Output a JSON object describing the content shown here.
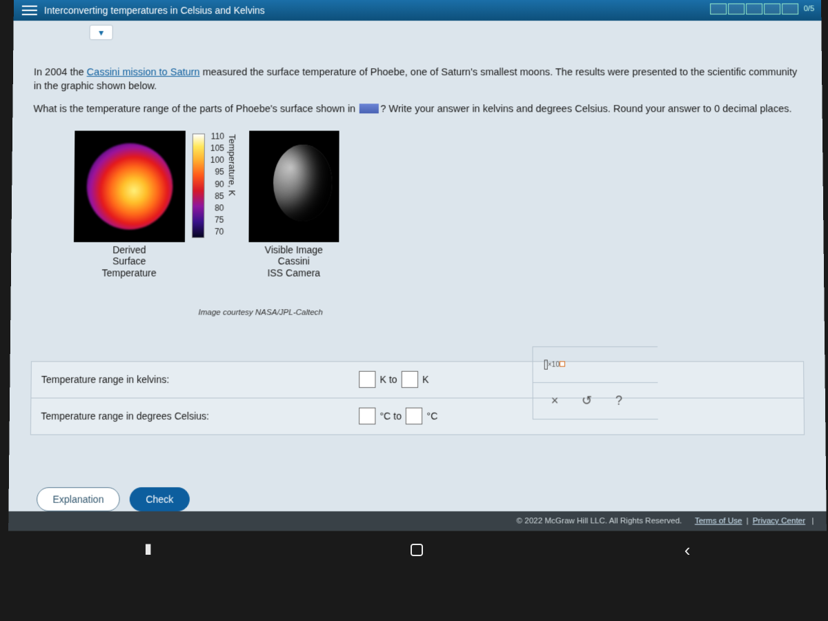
{
  "titlebar": {
    "title": "Interconverting temperatures in Celsius and Kelvins",
    "score": "0/5"
  },
  "problem": {
    "intro_prefix": "In 2004 the ",
    "intro_link": "Cassini mission to Saturn",
    "intro_suffix": " measured the surface temperature of Phoebe, one of Saturn's smallest moons. The results were presented to the scientific community in the graphic shown below.",
    "question_prefix": "What is the temperature range of the parts of Phoebe's surface shown in ",
    "question_suffix_a": "? Write your answer in kelvins and degrees Celsius. Round your answer to ",
    "question_zero": "0",
    "question_suffix_b": " decimal places."
  },
  "graphic": {
    "ticks": [
      "110",
      "105",
      "100",
      "95",
      "90",
      "85",
      "80",
      "75",
      "70"
    ],
    "axis_label": "Temperature, K",
    "caption_left_l1": "Derived",
    "caption_left_l2": "Surface",
    "caption_left_l3": "Temperature",
    "caption_right_l1": "Visible Image",
    "caption_right_l2": "Cassini",
    "caption_right_l3": "ISS Camera",
    "credit": "Image courtesy NASA/JPL-Caltech"
  },
  "answers": {
    "kelvin_label": "Temperature range in kelvins:",
    "kelvin_unit1": "K to",
    "kelvin_unit2": "K",
    "celsius_label": "Temperature range in degrees Celsius:",
    "celsius_unit1": "°C to",
    "celsius_unit2": "°C"
  },
  "tools": {
    "x10": "×10",
    "clear": "×",
    "reset": "↺",
    "help": "?"
  },
  "buttons": {
    "explanation": "Explanation",
    "check": "Check"
  },
  "footer": {
    "copyright": "© 2022 McGraw Hill LLC. All Rights Reserved.",
    "terms": "Terms of Use",
    "sep": " | ",
    "privacy": "Privacy Center"
  }
}
